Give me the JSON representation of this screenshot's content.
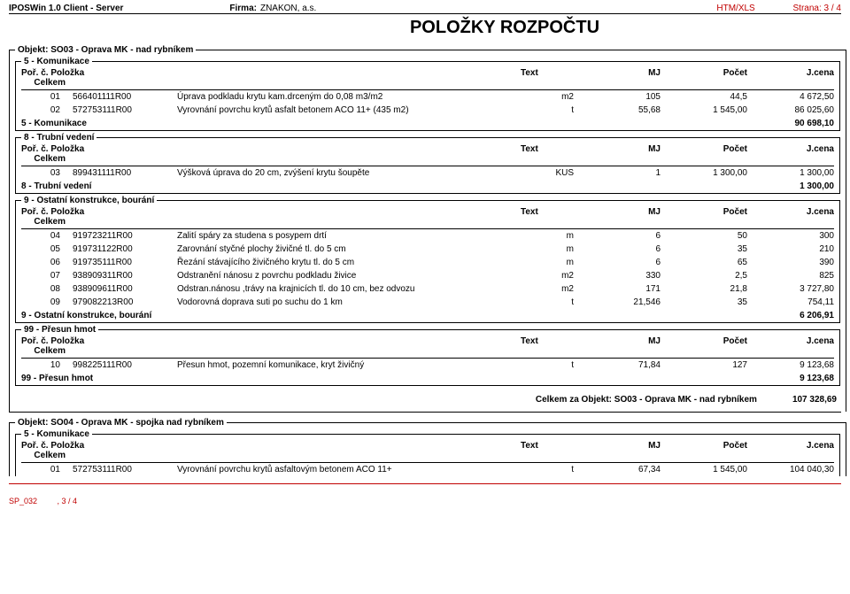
{
  "header": {
    "app": "IPOSWin 1.0 Client - Server",
    "firma_label": "Firma:",
    "firma": "ZNAKON, a.s.",
    "htmxls": "HTM/XLS",
    "strana": "Strana: 3 / 4"
  },
  "title": "POLOŽKY ROZPOČTU",
  "col": {
    "porc": "Poř. č.",
    "polozka": "Položka",
    "text": "Text",
    "mj": "MJ",
    "pocet": "Počet",
    "jcena": "J.cena",
    "celkem": "Celkem"
  },
  "obj1": {
    "title": "Objekt: SO03 - Oprava MK - nad rybníkem",
    "sec5": {
      "title": "5 - Komunikace",
      "rows": [
        {
          "n": "01",
          "code": "566401111R00",
          "text": "Úprava podkladu krytu kam.drceným do 0,08 m3/m2",
          "mj": "m2",
          "pocet": "105",
          "jcena": "44,5",
          "celkem": "4 672,50"
        },
        {
          "n": "02",
          "code": "572753111R00",
          "text": "Vyrovnání povrchu krytů asfalt betonem ACO 11+ (435 m2)",
          "mj": "t",
          "pocet": "55,68",
          "jcena": "1 545,00",
          "celkem": "86 025,60"
        }
      ],
      "subtotal_label": "5 - Komunikace",
      "subtotal": "90 698,10"
    },
    "sec8": {
      "title": "8 - Trubní vedení",
      "rows": [
        {
          "n": "03",
          "code": "899431111R00",
          "text": "Výšková úprava do 20 cm, zvýšení krytu šoupěte",
          "mj": "KUS",
          "pocet": "1",
          "jcena": "1 300,00",
          "celkem": "1 300,00"
        }
      ],
      "subtotal_label": "8 - Trubní vedení",
      "subtotal": "1 300,00"
    },
    "sec9": {
      "title": "9 - Ostatní konstrukce, bourání",
      "rows": [
        {
          "n": "04",
          "code": "919723211R00",
          "text": "Zalití spáry za studena s posypem drtí",
          "mj": "m",
          "pocet": "6",
          "jcena": "50",
          "celkem": "300"
        },
        {
          "n": "05",
          "code": "919731122R00",
          "text": "Zarovnání styčné plochy živičné tl. do 5 cm",
          "mj": "m",
          "pocet": "6",
          "jcena": "35",
          "celkem": "210"
        },
        {
          "n": "06",
          "code": "919735111R00",
          "text": "Řezání stávajícího živičného krytu tl. do 5 cm",
          "mj": "m",
          "pocet": "6",
          "jcena": "65",
          "celkem": "390"
        },
        {
          "n": "07",
          "code": "938909311R00",
          "text": "Odstranění nánosu z povrchu podkladu živice",
          "mj": "m2",
          "pocet": "330",
          "jcena": "2,5",
          "celkem": "825"
        },
        {
          "n": "08",
          "code": "938909611R00",
          "text": "Odstran.nánosu ,trávy na krajnicích tl. do 10 cm, bez odvozu",
          "mj": "m2",
          "pocet": "171",
          "jcena": "21,8",
          "celkem": "3 727,80"
        },
        {
          "n": "09",
          "code": "979082213R00",
          "text": "Vodorovná doprava suti po suchu do 1 km",
          "mj": "t",
          "pocet": "21,546",
          "jcena": "35",
          "celkem": "754,11"
        }
      ],
      "subtotal_label": "9 - Ostatní konstrukce, bourání",
      "subtotal": "6 206,91"
    },
    "sec99": {
      "title": "99 - Přesun hmot",
      "rows": [
        {
          "n": "10",
          "code": "998225111R00",
          "text": "Přesun hmot, pozemní komunikace, kryt živičný",
          "mj": "t",
          "pocet": "71,84",
          "jcena": "127",
          "celkem": "9 123,68"
        }
      ],
      "subtotal_label": "99 - Přesun hmot",
      "subtotal": "9 123,68"
    },
    "grand_label": "Celkem za Objekt: SO03 - Oprava MK - nad rybníkem",
    "grand_total": "107 328,69"
  },
  "obj2": {
    "title": "Objekt: SO04 - Oprava MK - spojka nad rybníkem",
    "sec5": {
      "title": "5 - Komunikace",
      "rows": [
        {
          "n": "01",
          "code": "572753111R00",
          "text": "Vyrovnání povrchu krytů asfaltovým betonem ACO 11+",
          "mj": "t",
          "pocet": "67,34",
          "jcena": "1 545,00",
          "celkem": "104 040,30"
        }
      ]
    }
  },
  "footer": {
    "sp": "SP_032",
    "pg": ", 3 / 4"
  }
}
